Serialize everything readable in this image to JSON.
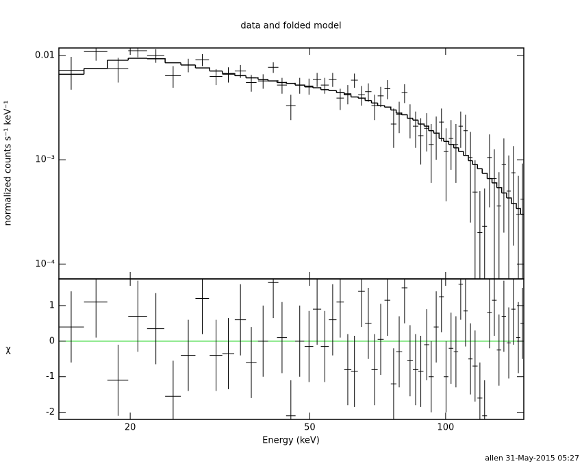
{
  "chart_data": [
    {
      "type": "errorbar",
      "title": "data and folded model",
      "y_label": "normalized counts s⁻¹ keV⁻¹",
      "log_x": true,
      "log_y": true,
      "xlim": [
        13.9,
        149
      ],
      "ylim": [
        7.2e-05,
        0.0118
      ],
      "yticks": [
        {
          "value": 0.01,
          "label": "0.01"
        },
        {
          "value": 0.001,
          "label": "10⁻³"
        },
        {
          "value": 0.0001,
          "label": "10⁻⁴"
        }
      ],
      "color": "#000000",
      "x": [
        14.8,
        16.8,
        18.8,
        20.8,
        22.8,
        24.9,
        26.9,
        28.9,
        31.0,
        33.0,
        35.1,
        37.1,
        39.4,
        41.5,
        43.4,
        45.4,
        47.5,
        49.8,
        51.9,
        54.0,
        56.2,
        58.4,
        60.7,
        62.8,
        65.1,
        67.4,
        69.6,
        71.8,
        74.3,
        76.7,
        78.9,
        81.1,
        83.4,
        85.8,
        88.1,
        90.8,
        92.9,
        95.3,
        97.9,
        100.2,
        102.8,
        105.4,
        108.0,
        110.7,
        113.5,
        116.2,
        119.1,
        122.0,
        125.1,
        128.2,
        131.3,
        134.6,
        138.0,
        141.3,
        144.9,
        148.0
      ],
      "xerr": [
        1.0,
        1.0,
        1.0,
        1.0,
        1.0,
        1.0,
        1.0,
        1.0,
        1.0,
        1.0,
        1.0,
        1.0,
        1.0,
        1.1,
        1.1,
        1.1,
        1.1,
        1.1,
        1.1,
        1.1,
        1.1,
        1.1,
        1.1,
        1.1,
        1.1,
        1.1,
        1.1,
        1.1,
        1.1,
        1.1,
        1.2,
        1.2,
        1.2,
        1.2,
        1.2,
        1.2,
        1.2,
        1.2,
        1.2,
        1.2,
        1.2,
        1.2,
        1.2,
        1.2,
        1.2,
        1.5,
        1.5,
        1.5,
        1.5,
        1.5,
        1.5,
        1.5,
        1.5,
        1.5,
        1.5,
        1.5
      ],
      "values": [
        0.0072,
        0.0109,
        0.0075,
        0.0111,
        0.01,
        0.0064,
        0.0081,
        0.0091,
        0.0063,
        0.0066,
        0.0071,
        0.0055,
        0.0057,
        0.0077,
        0.0052,
        0.0033,
        0.0052,
        0.0051,
        0.0059,
        0.0052,
        0.0059,
        0.0039,
        0.0043,
        0.0058,
        0.0042,
        0.0045,
        0.0033,
        0.0041,
        0.0048,
        0.0022,
        0.0027,
        0.0044,
        0.0025,
        0.0021,
        0.0017,
        0.002,
        0.0014,
        0.0018,
        0.0023,
        0.0012,
        0.0016,
        0.0014,
        0.0021,
        0.0019,
        0.00105,
        0.00049,
        0.0002,
        0.00023,
        0.00105,
        0.00066,
        0.00036,
        0.0009,
        0.0005,
        0.00075,
        0.0003,
        0.00042
      ],
      "yerr": [
        0.0025,
        0.002,
        0.002,
        0.0015,
        0.0015,
        0.0015,
        0.0012,
        0.0012,
        0.0011,
        0.0011,
        0.001,
        0.001,
        0.0009,
        0.0009,
        0.0009,
        0.0009,
        0.0009,
        0.0009,
        0.0009,
        0.0009,
        0.0009,
        0.0009,
        0.0009,
        0.0009,
        0.0009,
        0.0009,
        0.0009,
        0.0009,
        0.001,
        0.0009,
        0.0009,
        0.0009,
        0.0009,
        0.0008,
        0.0008,
        0.0008,
        0.0008,
        0.0008,
        0.0008,
        0.0008,
        0.0008,
        0.0008,
        0.0008,
        0.0008,
        0.0008,
        0.0005,
        0.0003,
        0.0003,
        0.0007,
        0.0006,
        0.0004,
        0.0007,
        0.0006,
        0.0006,
        0.0004,
        0.0005
      ],
      "model": [
        0.0066,
        0.0075,
        0.009,
        0.0094,
        0.0093,
        0.0085,
        0.0081,
        0.0076,
        0.0071,
        0.0067,
        0.0064,
        0.0061,
        0.0059,
        0.0057,
        0.0055,
        0.0054,
        0.0052,
        0.005,
        0.0049,
        0.0047,
        0.0046,
        0.0044,
        0.0042,
        0.004,
        0.0039,
        0.0037,
        0.0035,
        0.0033,
        0.0032,
        0.003,
        0.0028,
        0.0027,
        0.0025,
        0.0024,
        0.0022,
        0.0021,
        0.0019,
        0.0018,
        0.0016,
        0.0015,
        0.0014,
        0.0013,
        0.0012,
        0.0011,
        0.00098,
        0.0009,
        0.00082,
        0.00074,
        0.00066,
        0.0006,
        0.00054,
        0.00048,
        0.00043,
        0.00038,
        0.00034,
        0.0003
      ]
    },
    {
      "type": "residual",
      "x_label": "Energy (keV)",
      "y_label": "χ",
      "log_x": true,
      "xlim": [
        13.9,
        149
      ],
      "ylim": [
        -2.2,
        1.75
      ],
      "xticks": [
        20,
        50,
        100
      ],
      "yticks": [
        -2,
        -1,
        0,
        1
      ],
      "zero_line": 0,
      "zero_color": "#00cc00",
      "color": "#000000",
      "values": [
        0.4,
        1.1,
        -1.1,
        0.7,
        0.35,
        -1.55,
        -0.4,
        1.2,
        -0.4,
        -0.35,
        0.6,
        -0.6,
        0.0,
        1.65,
        0.1,
        -2.1,
        0.0,
        -0.15,
        0.9,
        -0.15,
        0.6,
        1.1,
        -0.8,
        -0.85,
        1.4,
        0.5,
        -0.8,
        0.05,
        1.15,
        -1.2,
        -0.3,
        1.5,
        -0.55,
        -0.8,
        -0.85,
        -0.1,
        -1.0,
        0.4,
        1.25,
        -1.0,
        -0.2,
        -0.3,
        1.6,
        0.85,
        -0.5,
        -0.7,
        -1.6,
        -2.1,
        0.8,
        1.15,
        -0.25,
        0.7,
        -0.05,
        0.9,
        0.1,
        0.5
      ],
      "yerr": [
        1,
        1,
        1,
        1,
        1,
        1,
        1,
        1,
        1,
        1,
        1,
        1,
        1,
        1,
        1,
        1,
        1,
        1,
        1,
        1,
        1,
        1,
        1,
        1,
        1,
        1,
        1,
        1,
        1,
        1,
        1,
        1,
        1,
        1,
        1,
        1,
        1,
        1,
        1,
        1,
        1,
        1,
        1,
        1,
        1,
        1,
        1,
        1,
        1,
        1,
        1,
        1,
        1,
        1,
        1,
        1
      ]
    }
  ],
  "footer": "allen 31-May-2015 05:27"
}
